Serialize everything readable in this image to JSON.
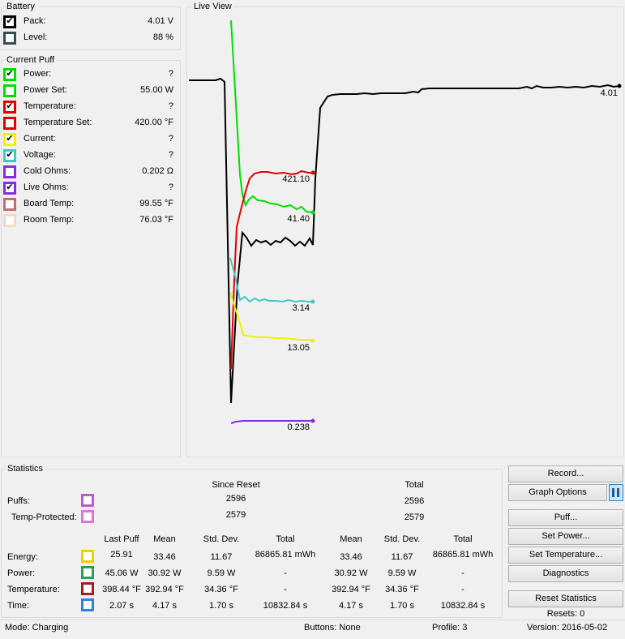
{
  "battery": {
    "title": "Battery",
    "items": [
      {
        "label": "Pack:",
        "value": "4.01 V",
        "checked": true,
        "color": "#000000"
      },
      {
        "label": "Level:",
        "value": "88 %",
        "checked": false,
        "color": "#2f4f4f"
      }
    ]
  },
  "current_puff": {
    "title": "Current Puff",
    "items": [
      {
        "label": "Power:",
        "value": "?",
        "checked": true,
        "color": "#00dd00"
      },
      {
        "label": "Power Set:",
        "value": "55.00 W",
        "checked": false,
        "color": "#00dd00"
      },
      {
        "label": "Temperature:",
        "value": "?",
        "checked": true,
        "color": "#e00000"
      },
      {
        "label": "Temperature Set:",
        "value": "420.00 °F",
        "checked": false,
        "color": "#e00000"
      },
      {
        "label": "Current:",
        "value": "?",
        "checked": true,
        "color": "#f0f000"
      },
      {
        "label": "Voltage:",
        "value": "?",
        "checked": true,
        "color": "#40c8c8"
      },
      {
        "label": "Cold Ohms:",
        "value": "0.202 Ω",
        "checked": false,
        "color": "#8a2be2"
      },
      {
        "label": "Live Ohms:",
        "value": "?",
        "checked": true,
        "color": "#8a2be2"
      },
      {
        "label": "Board Temp:",
        "value": "99.55 °F",
        "checked": false,
        "color": "#c07070"
      },
      {
        "label": "Room Temp:",
        "value": "76.03 °F",
        "checked": false,
        "color": "#f0dcc0"
      }
    ]
  },
  "live_view": {
    "title": "Live View",
    "end_labels": [
      "4.01",
      "421.10",
      "41.40",
      "3.14",
      "13.05",
      "0.238"
    ]
  },
  "statistics": {
    "title": "Statistics",
    "since_reset": "Since Reset",
    "total": "Total",
    "puffs_label": "Puffs:",
    "puffs_color": "#b85ec8",
    "puffs_since": "2596",
    "puffs_total": "2596",
    "temp_label": "Temp-Protected:",
    "temp_color": "#d878d8",
    "temp_since": "2579",
    "temp_total": "2579",
    "columns": [
      "Last Puff",
      "Mean",
      "Std. Dev.",
      "Total",
      "Mean",
      "Std. Dev.",
      "Total"
    ],
    "rows": [
      {
        "label": "Energy:",
        "color": "#f0d000",
        "cells": [
          "25.91",
          "33.46",
          "11.67",
          "86865.81 mWh",
          "33.46",
          "11.67",
          "86865.81 mWh"
        ]
      },
      {
        "label": "Power:",
        "color": "#2e9e5e",
        "cells": [
          "45.06 W",
          "30.92 W",
          "9.59 W",
          "-",
          "30.92 W",
          "9.59 W",
          "-"
        ]
      },
      {
        "label": "Temperature:",
        "color": "#a02020",
        "cells": [
          "398.44 °F",
          "392.94 °F",
          "34.36 °F",
          "-",
          "392.94 °F",
          "34.36 °F",
          "-"
        ]
      },
      {
        "label": "Time:",
        "color": "#3080e0",
        "cells": [
          "2.07 s",
          "4.17 s",
          "1.70 s",
          "10832.84 s",
          "4.17 s",
          "1.70 s",
          "10832.84 s"
        ]
      }
    ]
  },
  "buttons": {
    "record": "Record...",
    "graph_options": "Graph Options",
    "puff": "Puff...",
    "set_power": "Set Power...",
    "set_temperature": "Set Temperature...",
    "diagnostics": "Diagnostics",
    "reset_statistics": "Reset Statistics",
    "resets": "Resets: 0"
  },
  "status_bar": {
    "mode": "Mode: Charging",
    "buttons": "Buttons: None",
    "profile": "Profile: 3",
    "version": "Version: 2016-05-02"
  }
}
